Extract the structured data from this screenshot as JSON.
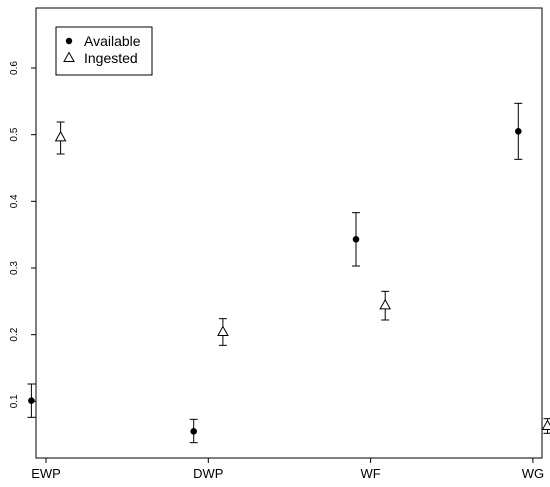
{
  "chart_data": {
    "type": "scatter",
    "title": "",
    "xlabel": "",
    "ylabel": "",
    "categories": [
      "EWP",
      "DWP",
      "WF",
      "WG"
    ],
    "ylim": [
      0.015,
      0.69
    ],
    "yticks": [
      0.1,
      0.2,
      0.3,
      0.4,
      0.5,
      0.6
    ],
    "grid": false,
    "legend": "top-left",
    "series": [
      {
        "name": "Available",
        "marker": "filled-circle",
        "offset": -0.09,
        "values": [
          0.101,
          0.055,
          0.343,
          0.505
        ],
        "lower": [
          0.076,
          0.038,
          0.303,
          0.463
        ],
        "upper": [
          0.126,
          0.073,
          0.383,
          0.547
        ]
      },
      {
        "name": "Ingested",
        "marker": "open-triangle",
        "offset": 0.09,
        "values": [
          0.496,
          0.204,
          0.244,
          0.063
        ],
        "lower": [
          0.471,
          0.184,
          0.222,
          0.052
        ],
        "upper": [
          0.519,
          0.224,
          0.265,
          0.074
        ]
      }
    ]
  }
}
